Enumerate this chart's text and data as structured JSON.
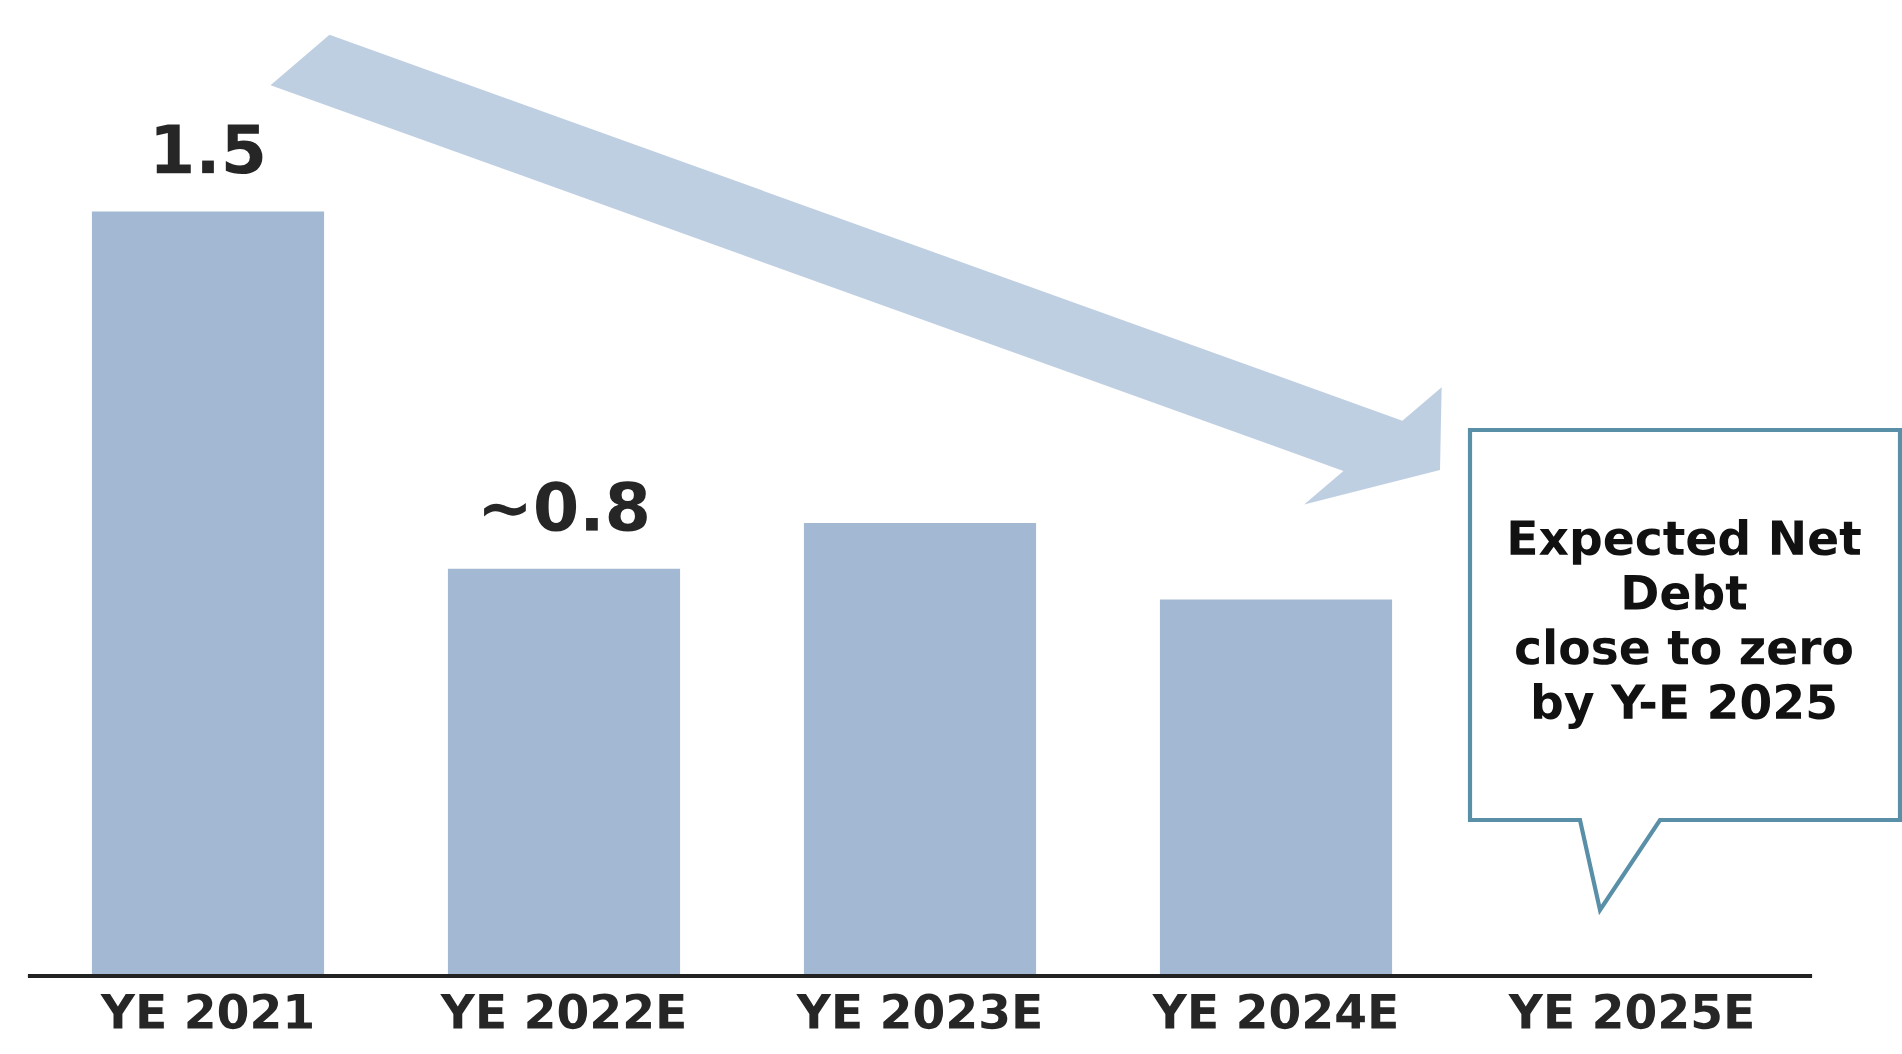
{
  "chart_data": {
    "type": "bar",
    "categories": [
      "YE 2021",
      "YE 2022E",
      "YE 2023E",
      "YE 2024E",
      "YE 2025E"
    ],
    "values": [
      1.5,
      0.8,
      0.89,
      0.74,
      null
    ],
    "value_labels": [
      "1.5",
      "~0.8",
      null,
      null,
      null
    ],
    "color": "#a3b9d3",
    "annotations": [
      "Expected Net\nDebt\nclose to zero\nby Y-E 2025"
    ]
  }
}
